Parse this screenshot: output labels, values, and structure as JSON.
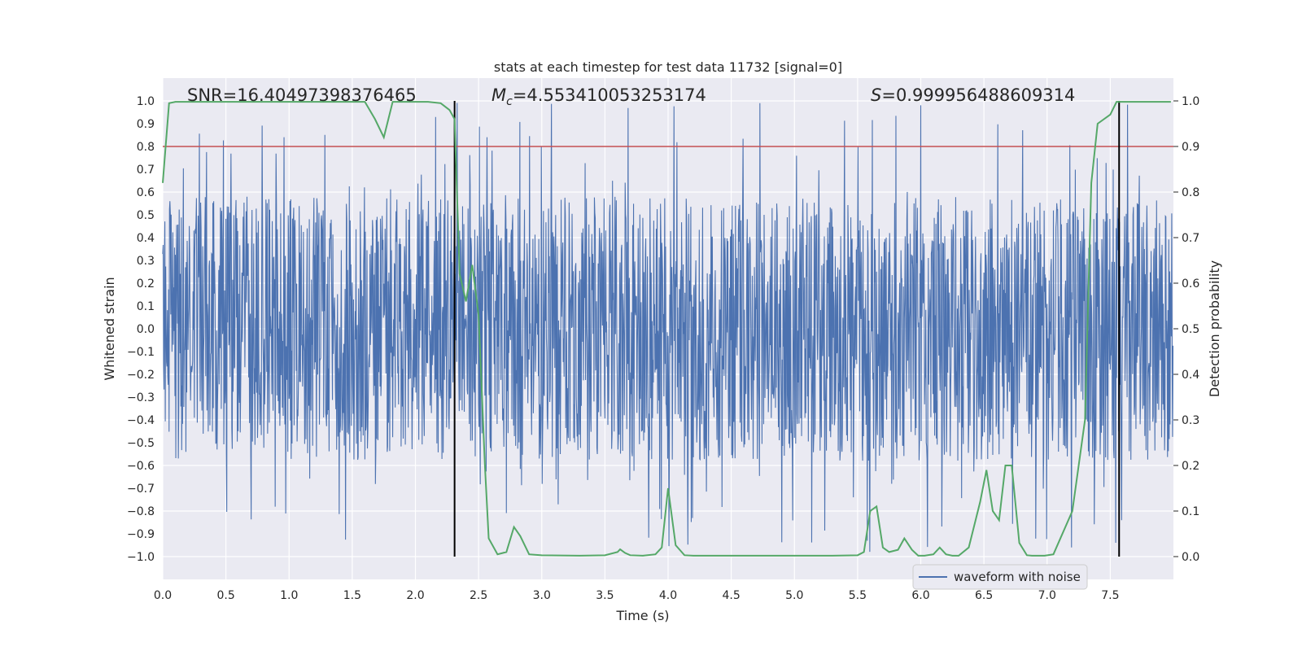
{
  "chart_data": {
    "type": "line",
    "title": "stats at each timestep for test data 11732 [signal=0]",
    "xlabel": "Time (s)",
    "ylabel_left": "Whitened strain",
    "ylabel_right": "Detection probability",
    "xlim": [
      0.0,
      8.0
    ],
    "ylim_left": [
      -1.1,
      1.1
    ],
    "ylim_right": [
      -0.05,
      1.05
    ],
    "xticks": [
      "0.0",
      "0.5",
      "1.0",
      "1.5",
      "2.0",
      "2.5",
      "3.0",
      "3.5",
      "4.0",
      "4.5",
      "5.0",
      "5.5",
      "6.0",
      "6.5",
      "7.0",
      "7.5"
    ],
    "xtick_values": [
      0.0,
      0.5,
      1.0,
      1.5,
      2.0,
      2.5,
      3.0,
      3.5,
      4.0,
      4.5,
      5.0,
      5.5,
      6.0,
      6.5,
      7.0,
      7.5
    ],
    "yticks_left": [
      "1.0",
      "0.9",
      "0.8",
      "0.7",
      "0.6",
      "0.5",
      "0.4",
      "0.3",
      "0.2",
      "0.1",
      "0.0",
      "−0.1",
      "−0.2",
      "−0.3",
      "−0.4",
      "−0.5",
      "−0.6",
      "−0.7",
      "−0.8",
      "−0.9",
      "−1.0"
    ],
    "ytick_values_left": [
      1.0,
      0.9,
      0.8,
      0.7,
      0.6,
      0.5,
      0.4,
      0.3,
      0.2,
      0.1,
      0.0,
      -0.1,
      -0.2,
      -0.3,
      -0.4,
      -0.5,
      -0.6,
      -0.7,
      -0.8,
      -0.9,
      -1.0
    ],
    "yticks_right": [
      "1.0",
      "0.9",
      "0.8",
      "0.7",
      "0.6",
      "0.5",
      "0.4",
      "0.3",
      "0.2",
      "0.1",
      "0.0"
    ],
    "ytick_values_right": [
      1.0,
      0.9,
      0.8,
      0.7,
      0.6,
      0.5,
      0.4,
      0.3,
      0.2,
      0.1,
      0.0
    ],
    "annotations": {
      "snr": "SNR=16.40497398376465",
      "mc_symbol": "M",
      "mc_sub": "c",
      "mc_value": "=4.553410053253174",
      "s_symbol": "S",
      "s_value": "=0.999956488609314"
    },
    "legend": {
      "label": "waveform with noise",
      "placement": "lower-right"
    },
    "threshold_line": {
      "y_right": 0.9,
      "color": "#c44e52"
    },
    "vertical_lines_x": [
      2.31,
      7.57
    ],
    "waveform": {
      "color": "#4c72b0",
      "seed": 11732,
      "duration": 8.0,
      "envelope": 0.58
    },
    "probability_series": {
      "name": "Detection probability",
      "color": "#55a868",
      "x": [
        0.0,
        0.05,
        0.1,
        0.2,
        0.3,
        0.5,
        0.8,
        1.0,
        1.2,
        1.4,
        1.6,
        1.68,
        1.75,
        1.82,
        1.88,
        2.0,
        2.1,
        2.2,
        2.27,
        2.31,
        2.35,
        2.4,
        2.45,
        2.5,
        2.55,
        2.58,
        2.65,
        2.72,
        2.78,
        2.83,
        2.9,
        3.0,
        3.3,
        3.5,
        3.6,
        3.62,
        3.66,
        3.7,
        3.8,
        3.9,
        3.95,
        4.0,
        4.06,
        4.13,
        4.2,
        4.3,
        4.5,
        5.0,
        5.3,
        5.5,
        5.55,
        5.6,
        5.65,
        5.7,
        5.75,
        5.82,
        5.87,
        5.93,
        5.98,
        6.03,
        6.1,
        6.15,
        6.2,
        6.25,
        6.3,
        6.38,
        6.47,
        6.52,
        6.57,
        6.62,
        6.67,
        6.72,
        6.78,
        6.84,
        6.88,
        6.93,
        6.98,
        7.05,
        7.2,
        7.3,
        7.35,
        7.4,
        7.5,
        7.55,
        7.6,
        7.65,
        7.7,
        7.8,
        7.9,
        7.98
      ],
      "y": [
        0.82,
        0.995,
        0.998,
        0.998,
        0.998,
        0.998,
        0.998,
        0.998,
        0.998,
        0.998,
        0.998,
        0.96,
        0.92,
        0.998,
        0.998,
        0.998,
        0.998,
        0.995,
        0.98,
        0.96,
        0.62,
        0.56,
        0.64,
        0.53,
        0.2,
        0.04,
        0.005,
        0.01,
        0.065,
        0.045,
        0.005,
        0.003,
        0.002,
        0.003,
        0.01,
        0.016,
        0.008,
        0.003,
        0.002,
        0.005,
        0.02,
        0.15,
        0.025,
        0.003,
        0.002,
        0.002,
        0.002,
        0.002,
        0.002,
        0.003,
        0.01,
        0.1,
        0.11,
        0.02,
        0.01,
        0.015,
        0.04,
        0.015,
        0.002,
        0.002,
        0.005,
        0.02,
        0.005,
        0.002,
        0.002,
        0.02,
        0.12,
        0.19,
        0.1,
        0.08,
        0.2,
        0.2,
        0.03,
        0.003,
        0.002,
        0.002,
        0.002,
        0.005,
        0.1,
        0.3,
        0.82,
        0.95,
        0.97,
        0.998,
        0.998,
        0.998,
        0.998,
        0.998,
        0.998,
        0.998
      ]
    }
  }
}
